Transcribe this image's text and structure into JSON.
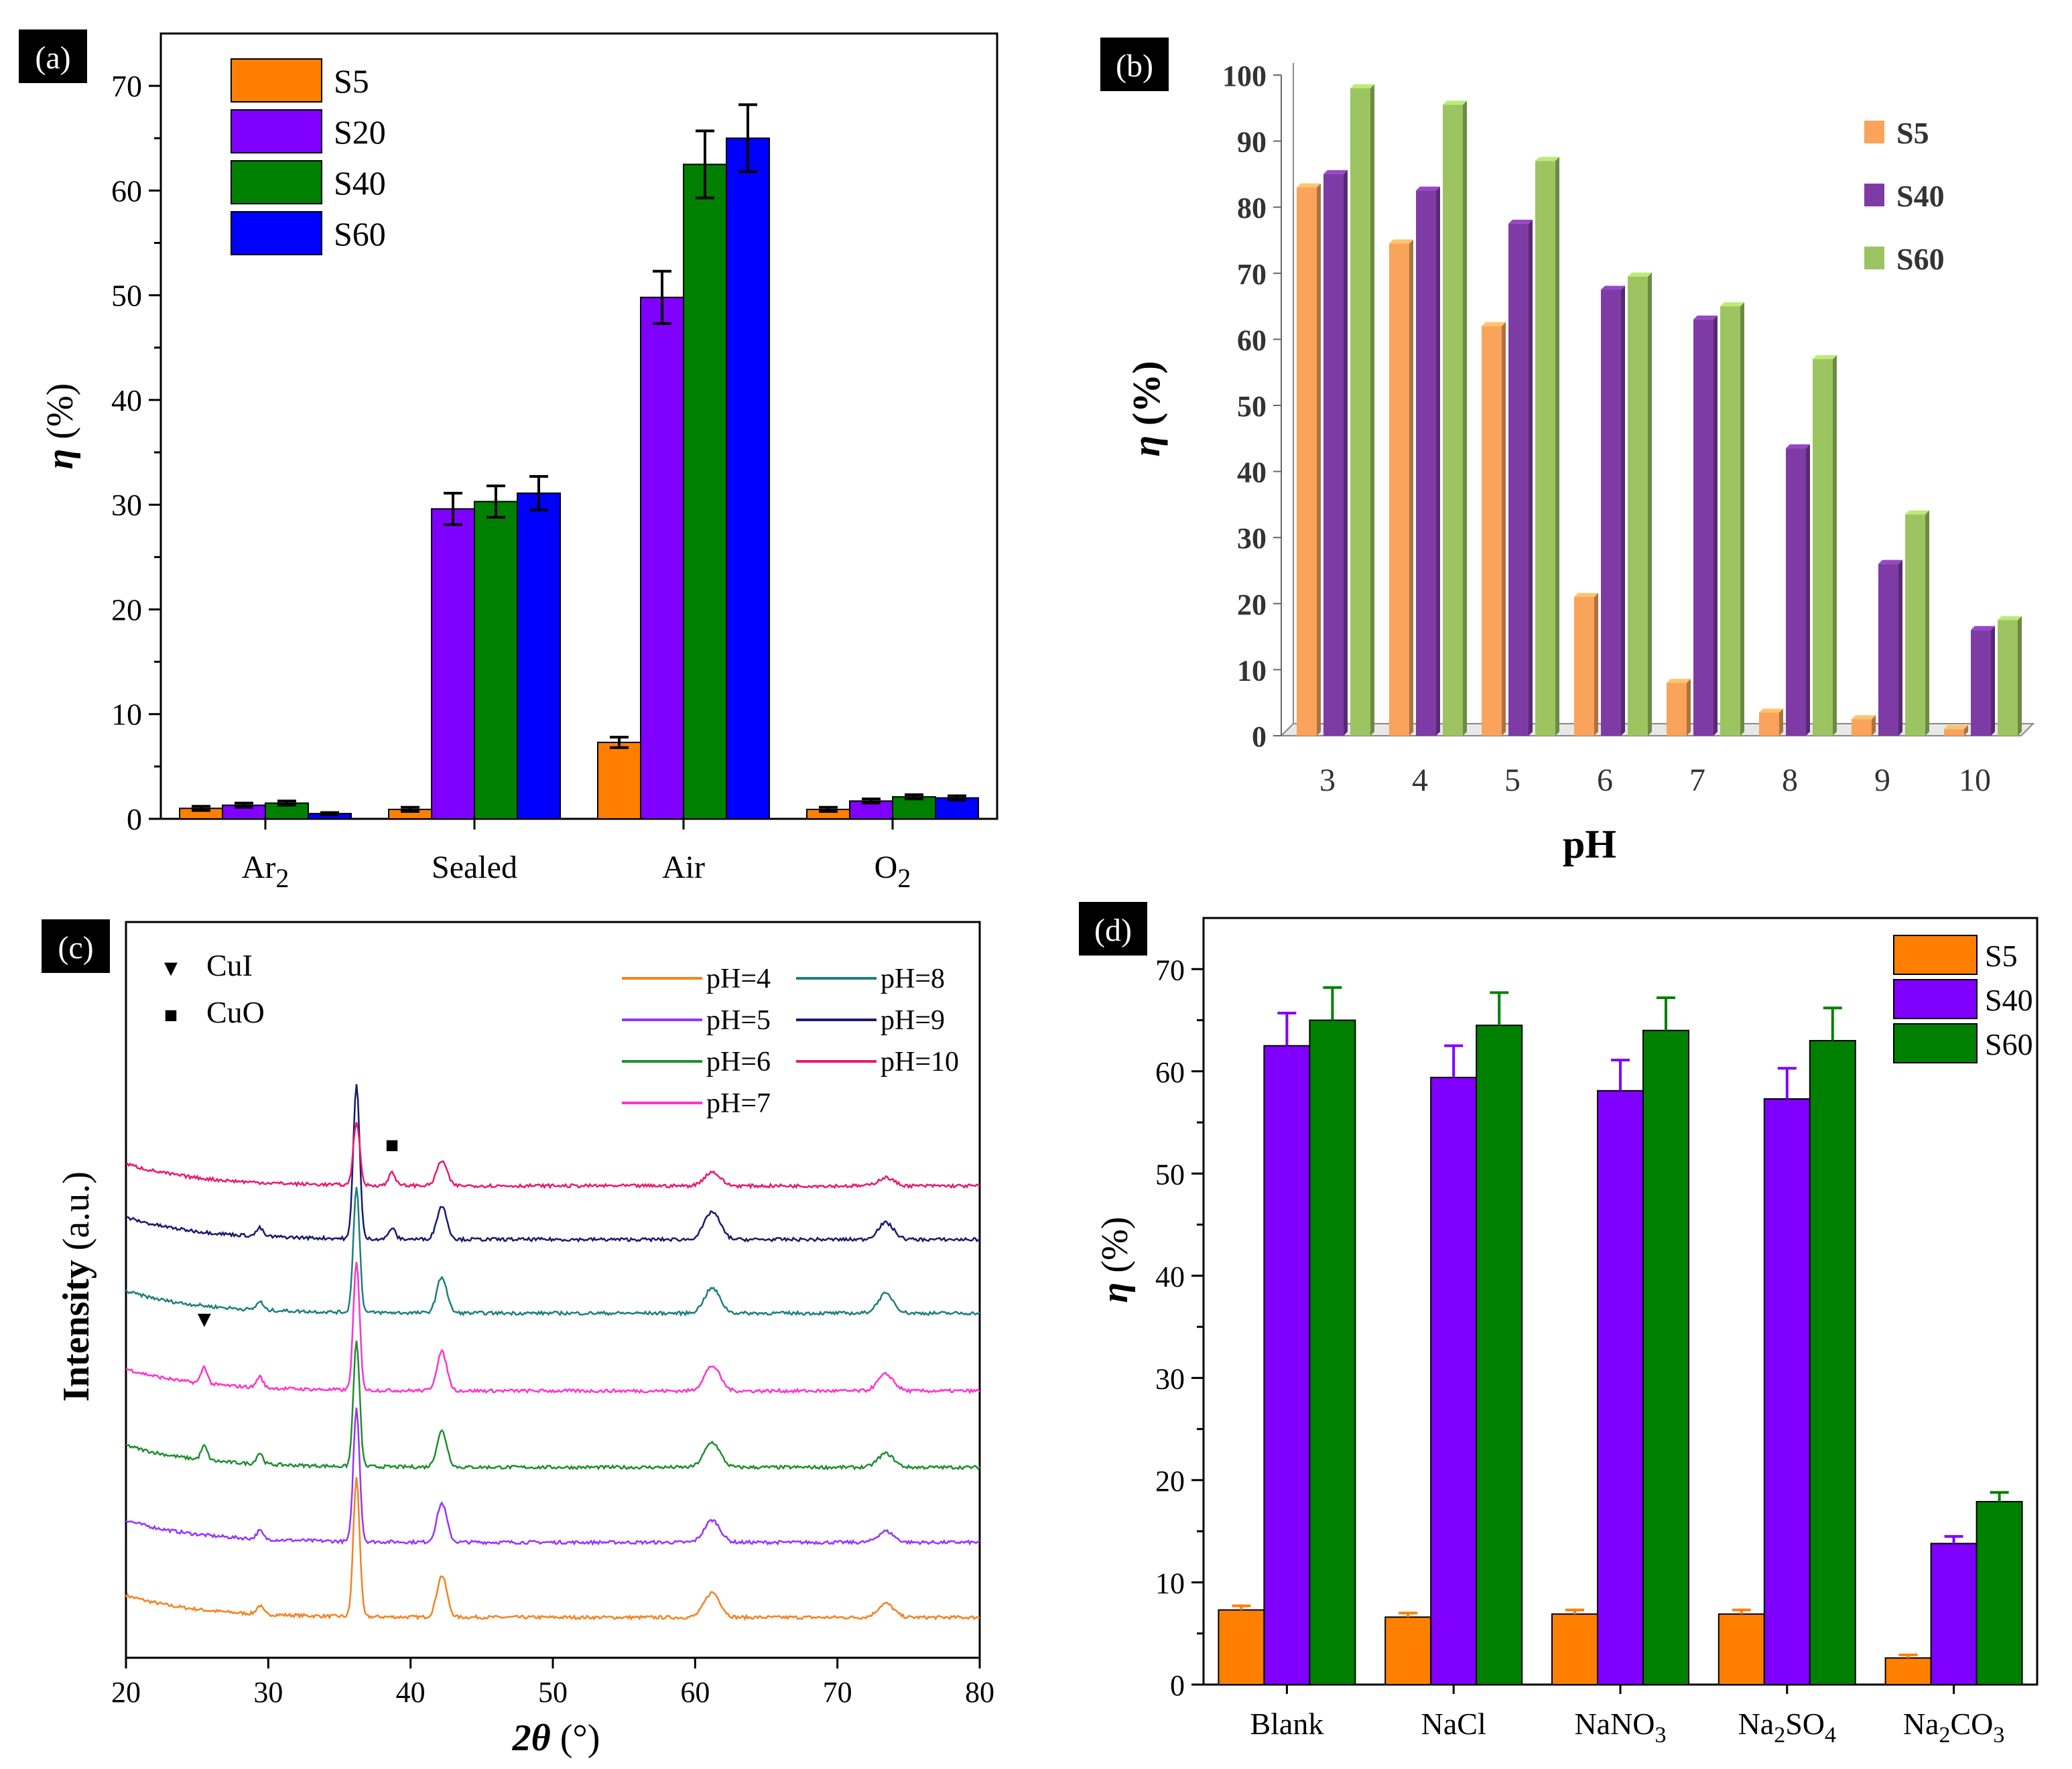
{
  "chart_data": [
    {
      "panel": "(a)",
      "type": "bar",
      "categories": [
        "Ar",
        "Sealed",
        "Air",
        "O"
      ],
      "category_subscripts": [
        "2",
        "",
        "",
        "2"
      ],
      "series": [
        {
          "name": "S5",
          "color": "#ff8000",
          "values": [
            1.0,
            0.9,
            7.3,
            0.9
          ],
          "errors": [
            0.2,
            0.2,
            0.5,
            0.2
          ]
        },
        {
          "name": "S20",
          "color": "#8000ff",
          "values": [
            1.3,
            29.6,
            49.8,
            1.7
          ],
          "errors": [
            0.2,
            1.5,
            2.5,
            0.2
          ]
        },
        {
          "name": "S40",
          "color": "#008000",
          "values": [
            1.5,
            30.3,
            62.5,
            2.1
          ],
          "errors": [
            0.2,
            1.5,
            3.2,
            0.2
          ]
        },
        {
          "name": "S60",
          "color": "#0000ff",
          "values": [
            0.5,
            31.1,
            65.0,
            2.0
          ],
          "errors": [
            0.1,
            1.6,
            3.2,
            0.2
          ]
        }
      ],
      "ylabel_symbol": "η",
      "ylabel_unit": "(%)",
      "ylim": [
        0,
        75
      ],
      "yticks": [
        0,
        10,
        20,
        30,
        40,
        50,
        60,
        70
      ],
      "ytick_labels": [
        "0",
        "10",
        "20",
        "30",
        "40",
        "50",
        "60",
        "70"
      ],
      "legend_position": "top-left"
    },
    {
      "panel": "(b)",
      "type": "bar",
      "style": "3d",
      "categories": [
        "3",
        "4",
        "5",
        "6",
        "7",
        "8",
        "9",
        "10"
      ],
      "series": [
        {
          "name": "S5",
          "color": "#f9a35b",
          "values": [
            83,
            74.5,
            62,
            21,
            8,
            3.5,
            2.5,
            1
          ]
        },
        {
          "name": "S40",
          "color": "#7e3ba5",
          "values": [
            85,
            82.5,
            77.5,
            67.5,
            63,
            43.5,
            26,
            16
          ]
        },
        {
          "name": "S60",
          "color": "#9cc561",
          "values": [
            98,
            95.5,
            87,
            69.5,
            65,
            57,
            33.5,
            17.5
          ]
        }
      ],
      "xlabel": "pH",
      "ylabel_symbol": "η",
      "ylabel_unit": "(%)",
      "ylim": [
        0,
        100
      ],
      "yticks": [
        0,
        10,
        20,
        30,
        40,
        50,
        60,
        70,
        80,
        90,
        100
      ],
      "ytick_labels": [
        "0",
        "10",
        "20",
        "30",
        "40",
        "50",
        "60",
        "70",
        "80",
        "90",
        "100"
      ],
      "legend_position": "top-right"
    },
    {
      "panel": "(c)",
      "type": "line",
      "xlabel_symbol": "2θ",
      "xlabel_unit": "(°)",
      "ylabel": "Intensity",
      "ylabel_unit": "(a.u.)",
      "xlim": [
        20,
        80
      ],
      "xticks": [
        20,
        30,
        40,
        50,
        60,
        70,
        80
      ],
      "xtick_labels": [
        "20",
        "30",
        "40",
        "50",
        "60",
        "70",
        "80"
      ],
      "markers": [
        {
          "symbol": "▼",
          "label": "CuI",
          "position_2theta": 25.5
        },
        {
          "symbol": "■",
          "label": "CuO",
          "position_2theta": 38.7
        }
      ],
      "series": [
        {
          "name": "pH=4",
          "color": "#f58220",
          "offset": 0,
          "peaks": [
            [
              29.4,
              0.3
            ],
            [
              36.2,
              5.0
            ],
            [
              42.2,
              1.5
            ],
            [
              61.2,
              0.9
            ],
            [
              73.4,
              0.5
            ]
          ]
        },
        {
          "name": "pH=5",
          "color": "#9933ff",
          "offset": 1,
          "peaks": [
            [
              29.4,
              0.3
            ],
            [
              36.2,
              4.8
            ],
            [
              42.2,
              1.4
            ],
            [
              61.2,
              0.8
            ],
            [
              73.4,
              0.4
            ]
          ]
        },
        {
          "name": "pH=6",
          "color": "#1e8f2e",
          "offset": 2,
          "peaks": [
            [
              25.5,
              0.5
            ],
            [
              29.4,
              0.4
            ],
            [
              36.2,
              4.5
            ],
            [
              42.2,
              1.3
            ],
            [
              61.2,
              0.9
            ],
            [
              73.4,
              0.5
            ]
          ]
        },
        {
          "name": "pH=7",
          "color": "#ff33cc",
          "offset": 3,
          "peaks": [
            [
              25.5,
              0.6
            ],
            [
              29.4,
              0.4
            ],
            [
              36.2,
              4.6
            ],
            [
              42.2,
              1.4
            ],
            [
              61.2,
              0.9
            ],
            [
              73.4,
              0.6
            ]
          ]
        },
        {
          "name": "pH=8",
          "color": "#1c7f7f",
          "offset": 4,
          "peaks": [
            [
              29.4,
              0.3
            ],
            [
              36.2,
              4.5
            ],
            [
              42.2,
              1.3
            ],
            [
              61.2,
              0.9
            ],
            [
              73.4,
              0.7
            ]
          ]
        },
        {
          "name": "pH=9",
          "color": "#191970",
          "offset": 5,
          "peaks": [
            [
              29.4,
              0.3
            ],
            [
              36.2,
              5.6
            ],
            [
              38.7,
              0.4
            ],
            [
              42.2,
              1.2
            ],
            [
              61.2,
              1.0
            ],
            [
              73.4,
              0.6
            ]
          ]
        },
        {
          "name": "pH=10",
          "color": "#e8196e",
          "offset": 6,
          "peaks": [
            [
              36.2,
              2.3
            ],
            [
              38.7,
              0.5
            ],
            [
              42.2,
              0.9
            ],
            [
              61.2,
              0.5
            ],
            [
              73.4,
              0.3
            ]
          ]
        }
      ],
      "legend_position": "top-right"
    },
    {
      "panel": "(d)",
      "type": "bar",
      "categories": [
        {
          "main": "Blank",
          "parts": []
        },
        {
          "main": "NaCl",
          "parts": []
        },
        {
          "main": "",
          "parts": [
            [
              "NaNO",
              ""
            ],
            [
              "3",
              "sub"
            ]
          ]
        },
        {
          "main": "",
          "parts": [
            [
              "Na",
              ""
            ],
            [
              "2",
              "sub"
            ],
            [
              "SO",
              ""
            ],
            [
              "4",
              "sub"
            ]
          ]
        },
        {
          "main": "",
          "parts": [
            [
              "Na",
              ""
            ],
            [
              "2",
              "sub"
            ],
            [
              "CO",
              ""
            ],
            [
              "3",
              "sub"
            ]
          ]
        }
      ],
      "series": [
        {
          "name": "S5",
          "color": "#ff8000",
          "values": [
            7.3,
            6.6,
            6.9,
            6.9,
            2.6
          ],
          "errors": [
            0.4,
            0.4,
            0.4,
            0.4,
            0.3
          ]
        },
        {
          "name": "S40",
          "color": "#8000ff",
          "values": [
            62.5,
            59.4,
            58.1,
            57.3,
            13.8
          ],
          "errors": [
            3.2,
            3.1,
            3.0,
            3.0,
            0.7
          ]
        },
        {
          "name": "S60",
          "color": "#008000",
          "values": [
            65.0,
            64.5,
            64.0,
            63.0,
            17.9
          ],
          "errors": [
            3.2,
            3.2,
            3.2,
            3.2,
            0.9
          ]
        }
      ],
      "ylabel_symbol": "η",
      "ylabel_unit": "(%)",
      "ylim": [
        0,
        75
      ],
      "yticks": [
        0,
        10,
        20,
        30,
        40,
        50,
        60,
        70
      ],
      "ytick_labels": [
        "0",
        "10",
        "20",
        "30",
        "40",
        "50",
        "60",
        "70"
      ],
      "legend_position": "top-right"
    }
  ]
}
